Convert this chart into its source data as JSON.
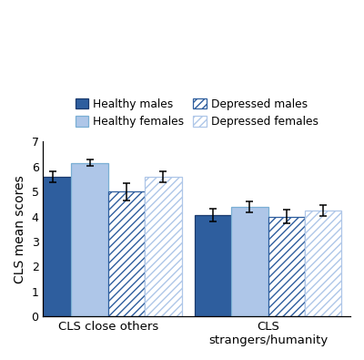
{
  "groups": [
    "CLS close others",
    "CLS\nstrangers/humanity"
  ],
  "categories": [
    "Healthy males",
    "Healthy females",
    "Depressed males",
    "Depressed females"
  ],
  "values": [
    [
      5.6,
      6.15,
      5.0,
      5.6
    ],
    [
      4.05,
      4.4,
      4.0,
      4.25
    ]
  ],
  "errors": [
    [
      0.22,
      0.12,
      0.35,
      0.22
    ],
    [
      0.25,
      0.22,
      0.28,
      0.22
    ]
  ],
  "color_healthy_male": "#2e5e9e",
  "color_healthy_female": "#aec6e8",
  "color_depressed_male_face": "white",
  "color_depressed_male_edge": "#2e5e9e",
  "color_depressed_male_hatch": "#2e5e9e",
  "color_depressed_female_face": "white",
  "color_depressed_female_edge": "#aec6e8",
  "color_depressed_female_hatch": "#aec6e8",
  "ylim": [
    0,
    7
  ],
  "yticks": [
    0,
    1,
    2,
    3,
    4,
    5,
    6,
    7
  ],
  "ylabel": "CLS mean scores",
  "bar_width": 0.17,
  "legend_labels": [
    "Healthy males",
    "Healthy females",
    "Depressed males",
    "Depressed females"
  ]
}
